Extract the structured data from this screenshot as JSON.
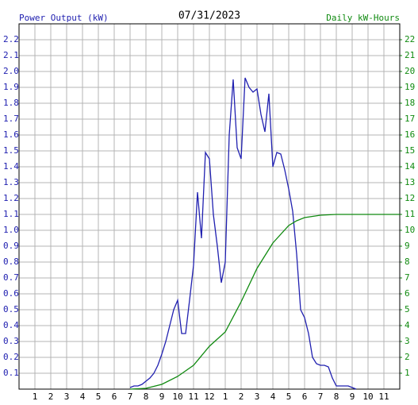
{
  "chart_data": {
    "type": "line",
    "title": "07/31/2023",
    "y_label": "Power Output (kW)",
    "y2_label": "Daily kW-Hours",
    "xlim": [
      0,
      24
    ],
    "xticks": [
      {
        "value": 1,
        "label": "1"
      },
      {
        "value": 2,
        "label": "2"
      },
      {
        "value": 3,
        "label": "3"
      },
      {
        "value": 4,
        "label": "4"
      },
      {
        "value": 5,
        "label": "5"
      },
      {
        "value": 6,
        "label": "6"
      },
      {
        "value": 7,
        "label": "7"
      },
      {
        "value": 8,
        "label": "8"
      },
      {
        "value": 9,
        "label": "9"
      },
      {
        "value": 10,
        "label": "10"
      },
      {
        "value": 11,
        "label": "11"
      },
      {
        "value": 12,
        "label": "12"
      },
      {
        "value": 13,
        "label": "1"
      },
      {
        "value": 14,
        "label": "2"
      },
      {
        "value": 15,
        "label": "3"
      },
      {
        "value": 16,
        "label": "4"
      },
      {
        "value": 17,
        "label": "5"
      },
      {
        "value": 18,
        "label": "6"
      },
      {
        "value": 19,
        "label": "7"
      },
      {
        "value": 20,
        "label": "8"
      },
      {
        "value": 21,
        "label": "9"
      },
      {
        "value": 22,
        "label": "10"
      },
      {
        "value": 23,
        "label": "11"
      }
    ],
    "ylim": [
      0,
      2.3
    ],
    "yticks": [
      0.1,
      0.2,
      0.3,
      0.4,
      0.5,
      0.6,
      0.7,
      0.8,
      0.9,
      {
        "value": 1,
        "label": "1.0"
      },
      1.1,
      1.2,
      1.3,
      1.4,
      1.5,
      1.6,
      1.7,
      1.8,
      1.9,
      {
        "value": 2,
        "label": "2.0"
      },
      2.1,
      2.2
    ],
    "y2lim": [
      0,
      23
    ],
    "y2ticks": [
      1,
      2,
      3,
      4,
      5,
      6,
      7,
      8,
      9,
      10,
      11,
      12,
      13,
      14,
      15,
      16,
      17,
      18,
      19,
      20,
      21,
      22
    ],
    "grid": true,
    "series": [
      {
        "name": "Power Output (kW)",
        "color": "#2020b0",
        "axis": "y",
        "x": [
          7,
          7.25,
          7.5,
          7.75,
          8,
          8.25,
          8.5,
          8.75,
          9,
          9.25,
          9.5,
          9.75,
          10,
          10.25,
          10.5,
          10.75,
          11,
          11.25,
          11.5,
          11.75,
          12,
          12.25,
          12.5,
          12.75,
          13,
          13.25,
          13.5,
          13.75,
          14,
          14.25,
          14.5,
          14.75,
          15,
          15.25,
          15.5,
          15.75,
          16,
          16.25,
          16.5,
          16.75,
          17,
          17.25,
          17.5,
          17.75,
          18,
          18.25,
          18.5,
          18.75,
          19,
          19.25,
          19.5,
          19.75,
          20,
          20.25,
          20.5,
          20.75,
          21,
          21.25
        ],
        "values": [
          0.01,
          0.02,
          0.02,
          0.03,
          0.05,
          0.07,
          0.1,
          0.15,
          0.22,
          0.3,
          0.4,
          0.5,
          0.56,
          0.35,
          0.35,
          0.56,
          0.78,
          1.24,
          0.95,
          1.49,
          1.45,
          1.1,
          0.9,
          0.67,
          0.8,
          1.6,
          1.95,
          1.52,
          1.45,
          1.96,
          1.9,
          1.87,
          1.89,
          1.73,
          1.62,
          1.86,
          1.4,
          1.49,
          1.48,
          1.38,
          1.26,
          1.12,
          0.85,
          0.5,
          0.45,
          0.35,
          0.2,
          0.16,
          0.15,
          0.15,
          0.14,
          0.07,
          0.02,
          0.02,
          0.02,
          0.02,
          0.01,
          0
        ]
      },
      {
        "name": "Daily kW-Hours",
        "color": "#108a10",
        "axis": "y2",
        "x": [
          7,
          8,
          9,
          10,
          11,
          12,
          13,
          14,
          15,
          16,
          17,
          17.5,
          18,
          19,
          20,
          24
        ],
        "values": [
          0,
          0.05,
          0.3,
          0.8,
          1.5,
          2.7,
          3.6,
          5.5,
          7.6,
          9.2,
          10.3,
          10.6,
          10.8,
          10.95,
          11,
          11
        ]
      }
    ]
  }
}
